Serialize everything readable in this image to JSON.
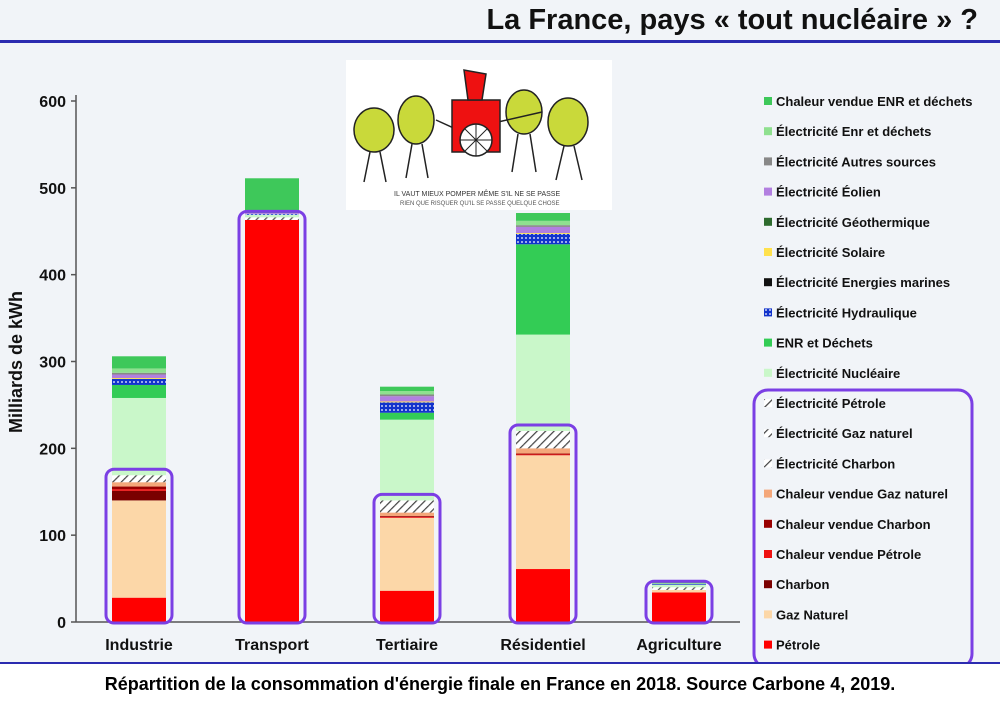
{
  "page": {
    "title": "La France, pays « tout nucléaire » ?"
  },
  "caption": "Répartition de la consommation d'énergie finale en France en 2018. Source Carbone 4, 2019.",
  "cartoon": {
    "caption_line1": "IL VAUT MIEUX POMPER MÊME S'IL NE SE PASSE",
    "caption_line2": "RIEN QUE RISQUER QU'IL SE PASSE QUELQUE CHOSE"
  },
  "chart_data": {
    "type": "bar",
    "stacked": true,
    "title": "",
    "xlabel": "",
    "ylabel": "Milliards de kWh",
    "ylim": [
      0,
      600
    ],
    "yticks": [
      0,
      100,
      200,
      300,
      400,
      500,
      600
    ],
    "grid": false,
    "legend_position": "right",
    "categories": [
      "Industrie",
      "Transport",
      "Tertiaire",
      "Résidentiel",
      "Agriculture"
    ],
    "series": [
      {
        "name": "Pétrole",
        "color": "#ff0000",
        "values": [
          28,
          463,
          36,
          61,
          34
        ]
      },
      {
        "name": "Gaz Naturel",
        "color": "#fcd7a8",
        "values": [
          112,
          0,
          84,
          131,
          3
        ]
      },
      {
        "name": "Charbon",
        "color": "#7a0000",
        "values": [
          11,
          0,
          0,
          0,
          0
        ]
      },
      {
        "name": "Chaleur vendue Pétrole",
        "color": "#ee1111",
        "values": [
          2,
          0,
          1,
          1,
          0
        ]
      },
      {
        "name": "Chaleur vendue Charbon",
        "color": "#990000",
        "values": [
          3,
          0,
          1,
          1,
          0
        ]
      },
      {
        "name": "Chaleur vendue Gaz naturel",
        "color": "#f4a77a",
        "values": [
          5,
          0,
          4,
          6,
          0
        ]
      },
      {
        "name": "Électricité Charbon",
        "color": "#333333",
        "values": [
          3,
          1,
          4,
          4,
          1
        ]
      },
      {
        "name": "Électricité Gaz naturel",
        "color": "#f7c98b",
        "values": [
          2,
          1,
          4,
          5,
          1
        ]
      },
      {
        "name": "Électricité Pétrole",
        "color": "#c0392b",
        "values": [
          3,
          1,
          6,
          11,
          1
        ]
      },
      {
        "name": "Électricité Nucléaire",
        "color": "#c9f7c9",
        "values": [
          89,
          3,
          93,
          111,
          3
        ]
      },
      {
        "name": "ENR et Déchets",
        "color": "#33cc55",
        "values": [
          15,
          0,
          8,
          104,
          0
        ]
      },
      {
        "name": "Électricité Hydraulique",
        "color": "#1133cc",
        "values": [
          7,
          1,
          12,
          12,
          1
        ]
      },
      {
        "name": "Électricité Energies marines",
        "color": "#111111",
        "values": [
          0,
          0,
          0,
          0,
          0
        ]
      },
      {
        "name": "Électricité Solaire",
        "color": "#ffe14d",
        "values": [
          1,
          0,
          1,
          1,
          0
        ]
      },
      {
        "name": "Électricité Géothermique",
        "color": "#2e6b2e",
        "values": [
          0,
          0,
          0,
          0,
          0
        ]
      },
      {
        "name": "Électricité Éolien",
        "color": "#b27fe0",
        "values": [
          4,
          1,
          6,
          7,
          0
        ]
      },
      {
        "name": "Électricité Autres sources",
        "color": "#888888",
        "values": [
          2,
          0,
          2,
          2,
          0
        ]
      },
      {
        "name": "Électricité Enr et déchets",
        "color": "#8fe08f",
        "values": [
          5,
          0,
          4,
          5,
          1
        ]
      },
      {
        "name": "Chaleur vendue ENR et déchets",
        "color": "#3ec85a",
        "values": [
          14,
          40,
          5,
          9,
          1
        ]
      }
    ],
    "highlighted_fossil_groups": [
      "Industrie",
      "Transport",
      "Tertiaire",
      "Résidentiel",
      "Agriculture"
    ]
  },
  "colors": {
    "highlight": "#7b3fe4",
    "title_rule": "#2b2bb0"
  }
}
